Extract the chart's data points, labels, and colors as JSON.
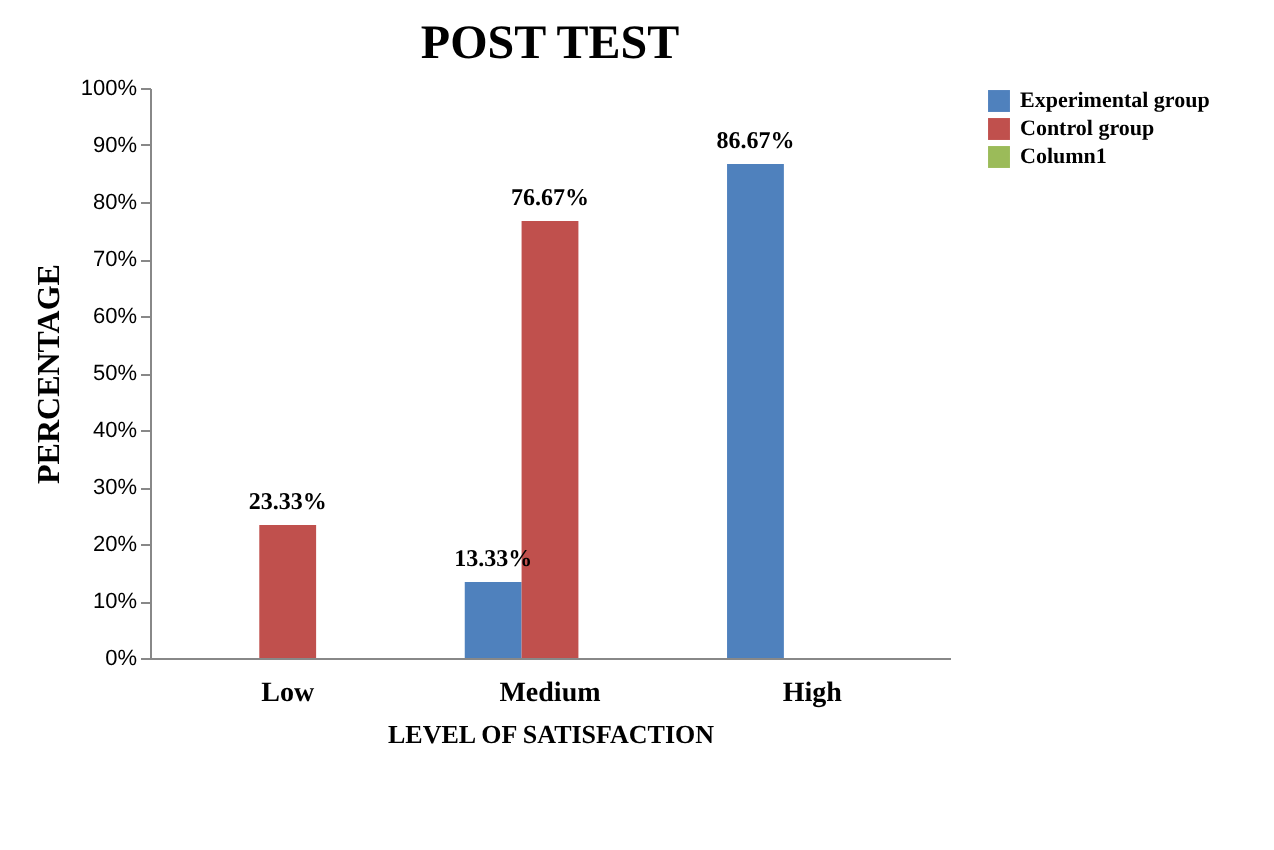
{
  "chart_data": {
    "type": "bar",
    "title": "POST TEST",
    "xlabel": "LEVEL OF SATISFACTION",
    "ylabel": "PERCENTAGE",
    "categories": [
      "Low",
      "Medium",
      "High"
    ],
    "series": [
      {
        "name": "Experimental group",
        "color": "#4f81bd",
        "values": [
          null,
          13.33,
          86.67
        ],
        "value_labels": [
          null,
          "13.33%",
          "86.67%"
        ]
      },
      {
        "name": "Control group",
        "color": "#c0504d",
        "values": [
          23.33,
          76.67,
          null
        ],
        "value_labels": [
          "23.33%",
          "76.67%",
          null
        ]
      },
      {
        "name": "Column1",
        "color": "#9bbb59",
        "values": [
          null,
          null,
          null
        ],
        "value_labels": [
          null,
          null,
          null
        ]
      }
    ],
    "ylim": [
      0,
      100
    ],
    "yticks": [
      {
        "value": 0,
        "label": "0%"
      },
      {
        "value": 10,
        "label": "10%"
      },
      {
        "value": 20,
        "label": "20%"
      },
      {
        "value": 30,
        "label": "30%"
      },
      {
        "value": 40,
        "label": "40%"
      },
      {
        "value": 50,
        "label": "50%"
      },
      {
        "value": 60,
        "label": "60%"
      },
      {
        "value": 70,
        "label": "70%"
      },
      {
        "value": 80,
        "label": "80%"
      },
      {
        "value": 90,
        "label": "90%"
      },
      {
        "value": 100,
        "label": "100%"
      }
    ],
    "grid": false,
    "legend": "right"
  }
}
